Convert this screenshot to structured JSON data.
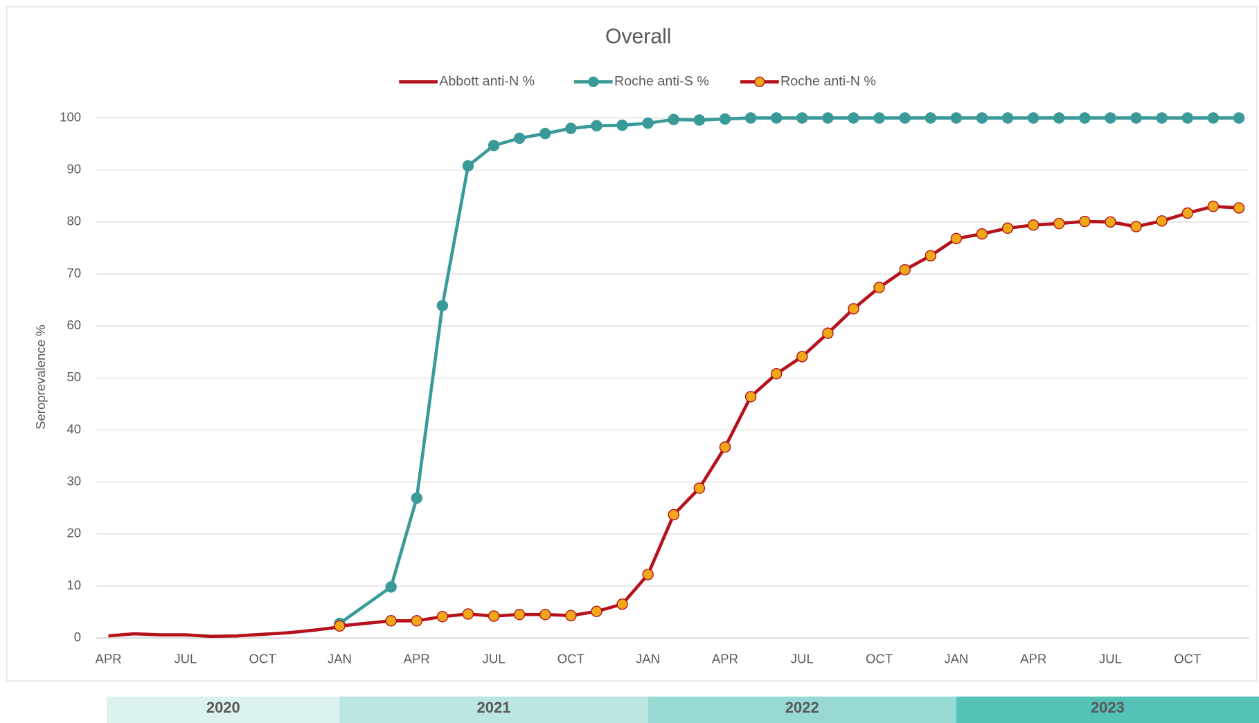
{
  "chart_data": {
    "type": "line",
    "title": "Overall",
    "y_label": "Seroprevalence %",
    "categories": [
      "APR",
      null,
      null,
      "JUL",
      null,
      null,
      "OCT",
      null,
      null,
      "JAN",
      null,
      null,
      "APR",
      null,
      null,
      "JUL",
      null,
      null,
      "OCT",
      null,
      null,
      "JAN",
      null,
      null,
      "APR",
      null,
      null,
      "JUL",
      null,
      null,
      "OCT",
      null,
      null,
      "JAN",
      null,
      null,
      "APR",
      null,
      null,
      "JUL",
      null,
      null,
      "OCT",
      null,
      null
    ],
    "series": [
      {
        "name": "Abbott anti-N %",
        "color": "#b5121b",
        "marker": false,
        "values": [
          0.4,
          0.8,
          0.6,
          0.6,
          0.3,
          0.4,
          0.7,
          1.0,
          1.5,
          2.1,
          null,
          null,
          null,
          null,
          null,
          null,
          null,
          null,
          null,
          null,
          null,
          null,
          null,
          null,
          null,
          null,
          null,
          null,
          null,
          null,
          null,
          null,
          null,
          null,
          null,
          null,
          null,
          null,
          null,
          null,
          null,
          null,
          null,
          null,
          null
        ]
      },
      {
        "name": "Roche anti-S %",
        "color": "#3a9a9a",
        "marker": true,
        "marker_color": "#3a9a9a",
        "values": [
          null,
          null,
          null,
          null,
          null,
          null,
          null,
          null,
          null,
          2.8,
          null,
          9.8,
          26.9,
          63.9,
          90.8,
          94.7,
          96.1,
          97.0,
          98.0,
          98.5,
          98.6,
          99.0,
          99.7,
          99.6,
          99.8,
          100,
          100,
          100,
          100,
          100,
          100,
          100,
          100,
          100,
          100,
          100,
          100,
          100,
          100,
          100,
          100,
          100,
          100,
          100,
          100
        ]
      },
      {
        "name": "Roche anti-N %",
        "color": "#b5121b",
        "marker": true,
        "marker_color": "#f0a818",
        "values": [
          null,
          null,
          null,
          null,
          null,
          null,
          null,
          null,
          null,
          2.3,
          null,
          3.3,
          3.3,
          4.1,
          4.6,
          4.2,
          4.5,
          4.5,
          4.3,
          5.1,
          6.5,
          12.2,
          23.7,
          28.8,
          36.7,
          46.4,
          50.8,
          54.1,
          58.6,
          63.3,
          67.4,
          70.8,
          73.5,
          76.8,
          77.7,
          78.8,
          79.4,
          79.7,
          80.1,
          80.0,
          79.1,
          80.2,
          81.7,
          83.0,
          82.7
        ]
      }
    ],
    "connect_gaps": true,
    "ylim": [
      0,
      100
    ],
    "yticks": [
      0,
      10,
      20,
      30,
      40,
      50,
      60,
      70,
      80,
      90,
      100
    ],
    "grid": true,
    "legend": "top",
    "years": [
      {
        "label": "2020",
        "color": "#dcf2ef"
      },
      {
        "label": "2021",
        "color": "#bbe6e1"
      },
      {
        "label": "2022",
        "color": "#98dad3"
      },
      {
        "label": "2023",
        "color": "#55c2b7"
      }
    ]
  }
}
